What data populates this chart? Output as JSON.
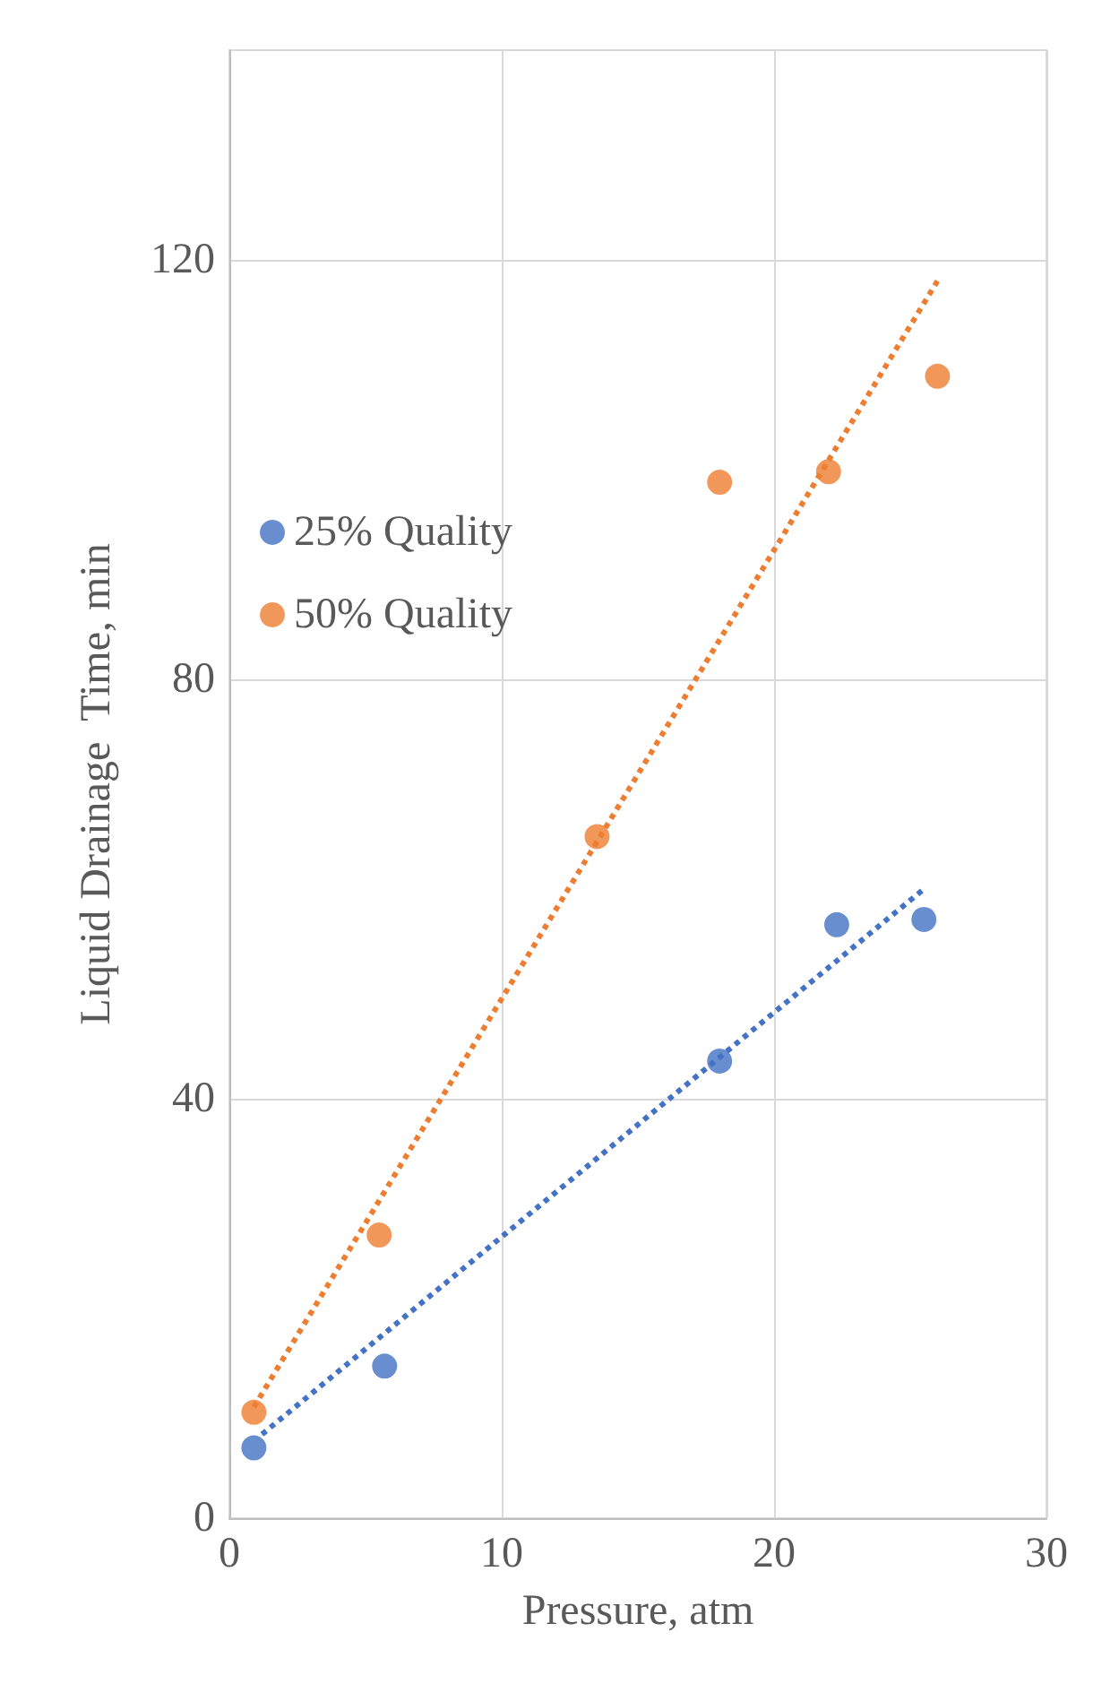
{
  "chart_data": {
    "type": "scatter",
    "xlabel": "Pressure, atm",
    "ylabel": "Liquid Drainage  Time, min",
    "series": [
      {
        "name": "25% Quality",
        "color": "#4472c4",
        "x": [
          0.9,
          5.7,
          18.0,
          22.3,
          25.5
        ],
        "values": [
          6.7,
          14.5,
          43.6,
          56.6,
          57.1
        ]
      },
      {
        "name": "50% Quality",
        "color": "#ed7d31",
        "x": [
          0.9,
          5.5,
          13.5,
          18.0,
          22.0,
          26.0
        ],
        "values": [
          10.1,
          27.0,
          65.0,
          98.8,
          99.8,
          108.9
        ]
      },
      {
        "type": "line",
        "color": "#4472c4",
        "x": [
          1.2,
          25.5
        ],
        "values": [
          8.0,
          60.0
        ],
        "line_style": "dotted",
        "marker": "none"
      },
      {
        "type": "line",
        "color": "#ed7d31",
        "x": [
          0.9,
          26.0
        ],
        "values": [
          10.6,
          118.0
        ],
        "line_style": "dotted",
        "marker": "none"
      }
    ],
    "xlim": [
      0,
      30
    ],
    "xticks": [
      0,
      10,
      20,
      30
    ],
    "ylim": [
      0,
      140
    ],
    "yticks": [
      0,
      40,
      80,
      120
    ],
    "grid": true,
    "legend": "left",
    "marker": "circle"
  }
}
